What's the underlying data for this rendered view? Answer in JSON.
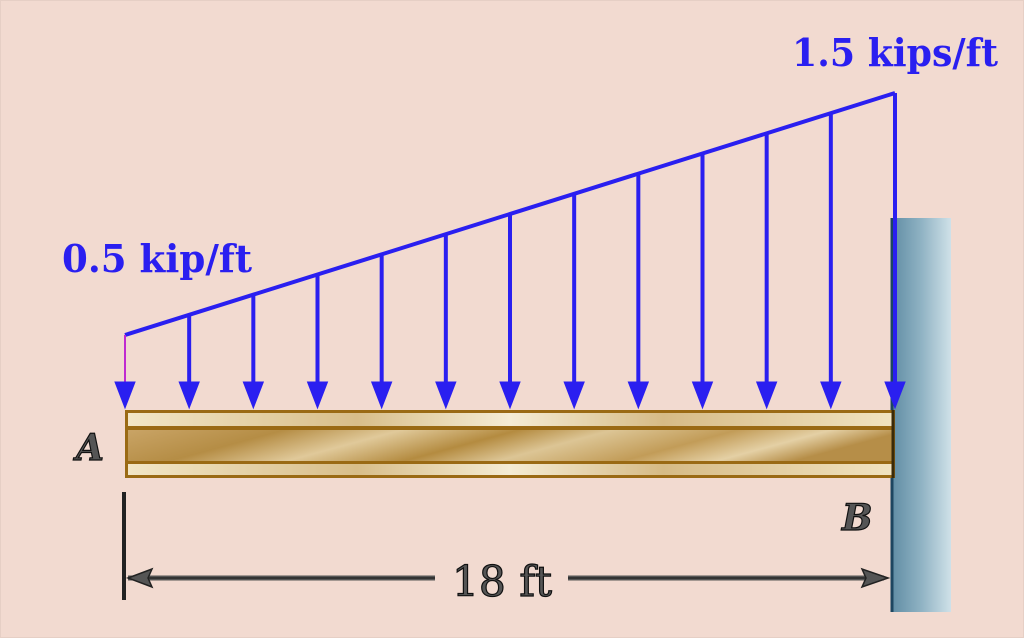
{
  "diagram": {
    "type": "cantilever-beam-with-linearly-varying-load",
    "background_color": "#f2dad0",
    "load": {
      "left_label": "0.5 kip/ft",
      "right_label": "1.5 kips/ft",
      "left_intensity": 0.5,
      "right_intensity": 1.5,
      "unit": "kip/ft",
      "color": "#2a1ff0",
      "arrow_count": 13
    },
    "beam": {
      "left_label": "A",
      "right_label": "B",
      "length_label": "18 ft",
      "length": 18,
      "unit": "ft",
      "color": "#c8a060"
    },
    "support": {
      "type": "fixed-wall",
      "location": "B",
      "color": "#6e97ac"
    }
  }
}
